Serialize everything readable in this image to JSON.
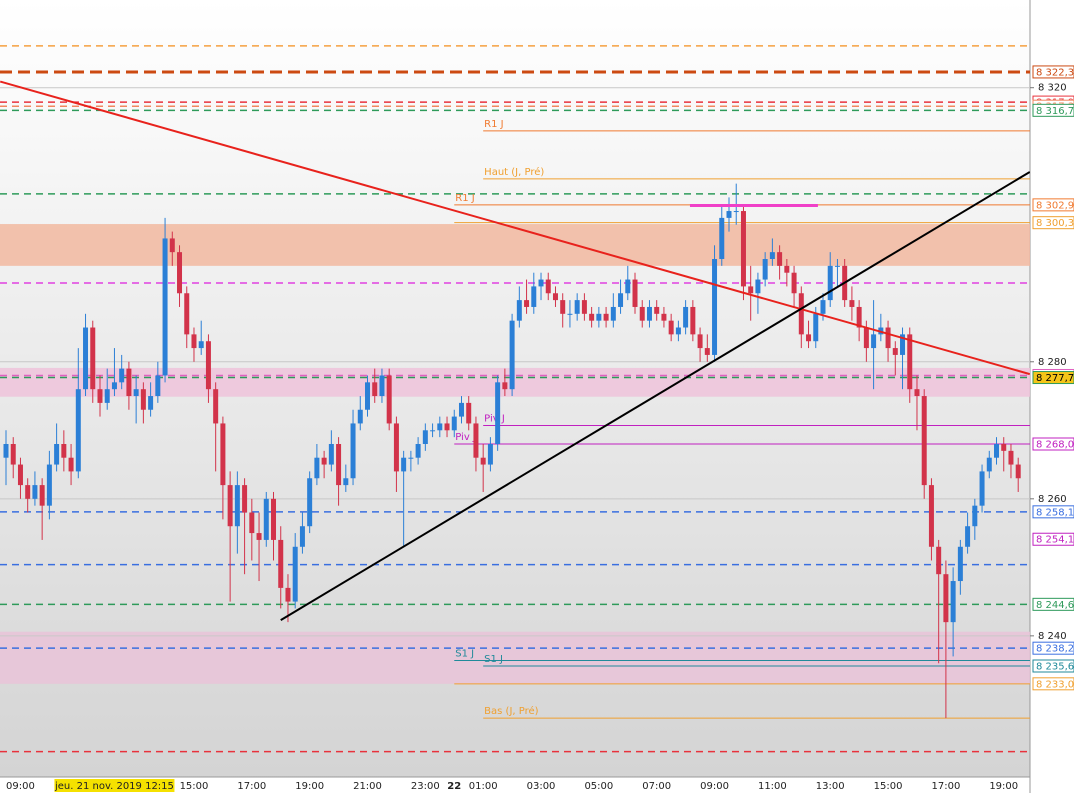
{
  "chart_data": {
    "type": "candlestick",
    "ylim": [
      8219.4,
      8332.8
    ],
    "yticks": [
      {
        "value": 8320,
        "label": "8 320"
      },
      {
        "value": 8280,
        "label": "8 280"
      },
      {
        "value": 8260,
        "label": "8 260"
      },
      {
        "value": 8240,
        "label": "8 240"
      }
    ],
    "grid": true,
    "up_color": "#2b7fd6",
    "down_color": "#d2334a",
    "highlight_category": 15,
    "bold_category": 62,
    "categories": [
      null,
      null,
      "09:00",
      null,
      null,
      null,
      null,
      null,
      null,
      null,
      null,
      null,
      null,
      null,
      null,
      "jeu. 21 nov. 2019 12:15",
      null,
      null,
      null,
      null,
      null,
      null,
      null,
      null,
      null,
      null,
      "15:00",
      null,
      null,
      null,
      null,
      null,
      null,
      null,
      "17:00",
      null,
      null,
      null,
      null,
      null,
      null,
      null,
      "19:00",
      null,
      null,
      null,
      null,
      null,
      null,
      null,
      "21:00",
      null,
      null,
      null,
      null,
      null,
      null,
      null,
      "23:00",
      null,
      null,
      null,
      "22",
      null,
      null,
      null,
      "01:00",
      null,
      null,
      null,
      null,
      null,
      null,
      null,
      "03:00",
      null,
      null,
      null,
      null,
      null,
      null,
      null,
      "05:00",
      null,
      null,
      null,
      null,
      null,
      null,
      null,
      "07:00",
      null,
      null,
      null,
      null,
      null,
      null,
      null,
      "09:00",
      null,
      null,
      null,
      null,
      null,
      null,
      null,
      "11:00",
      null,
      null,
      null,
      null,
      null,
      null,
      null,
      "13:00",
      null,
      null,
      null,
      null,
      null,
      null,
      null,
      "15:00",
      null,
      null,
      null,
      null,
      null,
      null,
      null,
      "17:00",
      null,
      null,
      null,
      null,
      null,
      null,
      null,
      "19:00",
      null,
      null
    ],
    "ohlc": [
      [
        8266,
        8270,
        8262,
        8268
      ],
      [
        8268,
        8269,
        8263,
        8265
      ],
      [
        8265,
        8266,
        8260,
        8262
      ],
      [
        8262,
        8263,
        8258,
        8260
      ],
      [
        8260,
        8264,
        8259,
        8262
      ],
      [
        8262,
        8263,
        8254,
        8259
      ],
      [
        8259,
        8267,
        8257,
        8265
      ],
      [
        8265,
        8271,
        8264,
        8268
      ],
      [
        8268,
        8270,
        8264,
        8266
      ],
      [
        8266,
        8268,
        8262,
        8264
      ],
      [
        8264,
        8282,
        8263,
        8276
      ],
      [
        8276,
        8287,
        8275,
        8285
      ],
      [
        8285,
        8286,
        8274,
        8276
      ],
      [
        8276,
        8278,
        8272,
        8274
      ],
      [
        8274,
        8279,
        8273,
        8276
      ],
      [
        8276,
        8282,
        8275,
        8277
      ],
      [
        8277,
        8281,
        8276,
        8279
      ],
      [
        8279,
        8280,
        8273,
        8275
      ],
      [
        8275,
        8278,
        8271,
        8276
      ],
      [
        8276,
        8277,
        8271,
        8273
      ],
      [
        8273,
        8277,
        8272,
        8275
      ],
      [
        8275,
        8280,
        8274,
        8278
      ],
      [
        8278,
        8301,
        8277,
        8298
      ],
      [
        8298,
        8299,
        8294,
        8296
      ],
      [
        8296,
        8297,
        8288,
        8290
      ],
      [
        8290,
        8291,
        8282,
        8284
      ],
      [
        8284,
        8285,
        8280,
        8282
      ],
      [
        8282,
        8286,
        8281,
        8283
      ],
      [
        8283,
        8284,
        8274,
        8276
      ],
      [
        8276,
        8277,
        8264,
        8271
      ],
      [
        8271,
        8272,
        8257,
        8262
      ],
      [
        8262,
        8264,
        8245,
        8256
      ],
      [
        8256,
        8264,
        8252,
        8262
      ],
      [
        8262,
        8263,
        8249,
        8258
      ],
      [
        8258,
        8260,
        8251,
        8255
      ],
      [
        8255,
        8258,
        8248,
        8254
      ],
      [
        8254,
        8261,
        8253,
        8260
      ],
      [
        8260,
        8261,
        8251,
        8254
      ],
      [
        8254,
        8256,
        8244,
        8247
      ],
      [
        8247,
        8249,
        8242,
        8245
      ],
      [
        8245,
        8255,
        8244,
        8253
      ],
      [
        8253,
        8258,
        8252,
        8256
      ],
      [
        8256,
        8264,
        8255,
        8263
      ],
      [
        8263,
        8268,
        8262,
        8266
      ],
      [
        8266,
        8267,
        8263,
        8265
      ],
      [
        8265,
        8270,
        8264,
        8268
      ],
      [
        8268,
        8269,
        8259,
        8262
      ],
      [
        8262,
        8265,
        8261,
        8263
      ],
      [
        8263,
        8273,
        8262,
        8271
      ],
      [
        8271,
        8275,
        8270,
        8273
      ],
      [
        8273,
        8278,
        8272,
        8277
      ],
      [
        8277,
        8279,
        8274,
        8275
      ],
      [
        8275,
        8279,
        8274,
        8278
      ],
      [
        8278,
        8279,
        8270,
        8271
      ],
      [
        8271,
        8272,
        8261,
        8264
      ],
      [
        8264,
        8267,
        8253,
        8266
      ],
      [
        8266,
        8267,
        8264,
        8266
      ],
      [
        8266,
        8269,
        8265,
        8268
      ],
      [
        8268,
        8271,
        8267,
        8270
      ],
      [
        8270,
        8271,
        8269,
        8270
      ],
      [
        8270,
        8272,
        8269,
        8271
      ],
      [
        8271,
        8272,
        8269,
        8270
      ],
      [
        8270,
        8273,
        8269,
        8272
      ],
      [
        8272,
        8275,
        8271,
        8274
      ],
      [
        8274,
        8275,
        8270,
        8271
      ],
      [
        8271,
        8272,
        8264,
        8266
      ],
      [
        8266,
        8268,
        8261,
        8265
      ],
      [
        8265,
        8269,
        8264,
        8268
      ],
      [
        8268,
        8278,
        8267,
        8277
      ],
      [
        8277,
        8279,
        8275,
        8276
      ],
      [
        8276,
        8287,
        8275,
        8286
      ],
      [
        8286,
        8291,
        8285,
        8289
      ],
      [
        8289,
        8292,
        8287,
        8288
      ],
      [
        8288,
        8293,
        8287,
        8291
      ],
      [
        8291,
        8293,
        8289,
        8292
      ],
      [
        8292,
        8293,
        8289,
        8290
      ],
      [
        8290,
        8291,
        8288,
        8289
      ],
      [
        8289,
        8290,
        8285,
        8287
      ],
      [
        8287,
        8289,
        8285,
        8287
      ],
      [
        8287,
        8290,
        8286,
        8289
      ],
      [
        8289,
        8290,
        8286,
        8287
      ],
      [
        8287,
        8288,
        8285,
        8286
      ],
      [
        8286,
        8288,
        8285,
        8287
      ],
      [
        8287,
        8288,
        8285,
        8286
      ],
      [
        8286,
        8290,
        8285,
        8288
      ],
      [
        8288,
        8292,
        8287,
        8290
      ],
      [
        8290,
        8294,
        8289,
        8292
      ],
      [
        8292,
        8293,
        8287,
        8288
      ],
      [
        8288,
        8289,
        8285,
        8286
      ],
      [
        8286,
        8289,
        8285,
        8288
      ],
      [
        8288,
        8289,
        8286,
        8287
      ],
      [
        8287,
        8288,
        8285,
        8286
      ],
      [
        8286,
        8287,
        8283,
        8284
      ],
      [
        8284,
        8286,
        8283,
        8285
      ],
      [
        8285,
        8289,
        8284,
        8288
      ],
      [
        8288,
        8289,
        8283,
        8284
      ],
      [
        8284,
        8285,
        8280,
        8282
      ],
      [
        8282,
        8284,
        8280,
        8281
      ],
      [
        8281,
        8297,
        8280,
        8295
      ],
      [
        8295,
        8303,
        8294,
        8301
      ],
      [
        8301,
        8304,
        8299,
        8302
      ],
      [
        8302,
        8306,
        8300,
        8302
      ],
      [
        8302,
        8303,
        8289,
        8291
      ],
      [
        8291,
        8294,
        8286,
        8290
      ],
      [
        8290,
        8293,
        8287,
        8292
      ],
      [
        8292,
        8296,
        8291,
        8295
      ],
      [
        8295,
        8298,
        8294,
        8296
      ],
      [
        8296,
        8297,
        8292,
        8294
      ],
      [
        8294,
        8295,
        8291,
        8293
      ],
      [
        8293,
        8294,
        8288,
        8290
      ],
      [
        8290,
        8291,
        8282,
        8284
      ],
      [
        8284,
        8286,
        8282,
        8283
      ],
      [
        8283,
        8288,
        8282,
        8287
      ],
      [
        8287,
        8290,
        8286,
        8289
      ],
      [
        8289,
        8296,
        8288,
        8294
      ],
      [
        8294,
        8295,
        8291,
        8294
      ],
      [
        8294,
        8295,
        8288,
        8289
      ],
      [
        8289,
        8291,
        8286,
        8288
      ],
      [
        8288,
        8289,
        8283,
        8285
      ],
      [
        8285,
        8286,
        8280,
        8282
      ],
      [
        8282,
        8289,
        8276,
        8284
      ],
      [
        8284,
        8287,
        8283,
        8285
      ],
      [
        8285,
        8286,
        8280,
        8282
      ],
      [
        8282,
        8283,
        8278,
        8281
      ],
      [
        8281,
        8285,
        8276,
        8284
      ],
      [
        8284,
        8285,
        8274,
        8276
      ],
      [
        8276,
        8278,
        8270,
        8275
      ],
      [
        8275,
        8276,
        8260,
        8262
      ],
      [
        8262,
        8263,
        8251,
        8253
      ],
      [
        8253,
        8254,
        8236,
        8249
      ],
      [
        8249,
        8251,
        8228,
        8242
      ],
      [
        8242,
        8250,
        8237,
        8248
      ],
      [
        8248,
        8254,
        8246,
        8253
      ],
      [
        8253,
        8258,
        8252,
        8256
      ],
      [
        8256,
        8260,
        8254,
        8259
      ],
      [
        8259,
        8265,
        8258,
        8264
      ],
      [
        8264,
        8267,
        8263,
        8266
      ],
      [
        8266,
        8269,
        8265,
        8268
      ],
      [
        8268,
        8269,
        8264,
        8267
      ],
      [
        8267,
        8268,
        8263,
        8265
      ],
      [
        8265,
        8266,
        8261,
        8263
      ]
    ],
    "zones": [
      {
        "from": 8300.1,
        "to": 8294.0,
        "color": "#f2b9a0"
      },
      {
        "from": 8279.1,
        "to": 8274.9,
        "color": "#efc3da"
      },
      {
        "from": 8240.6,
        "to": 8233.0,
        "color": "#e9c3d8"
      }
    ],
    "levels": [
      {
        "value": 8326.1,
        "color": "#f5a040",
        "style": "dash",
        "width": 1.5
      },
      {
        "value": 8322.3,
        "label": "8 322,3",
        "color": "#cc4a12",
        "style": "dash",
        "width": 3
      },
      {
        "value": 8317.9,
        "label": "8 317,9",
        "color": "#e8323c",
        "style": "dash",
        "width": 1.5
      },
      {
        "value": 8317.3,
        "label": "8 317,3",
        "color": "#f08860",
        "style": "dash",
        "width": 1.5
      },
      {
        "value": 8316.7,
        "label": "8 316,7",
        "color": "#2e9a5a",
        "style": "dash",
        "width": 1.5
      },
      {
        "value": 8304.5,
        "color": "#2e9a5a",
        "style": "dash",
        "width": 1.5
      },
      {
        "value": 8291.5,
        "color": "#e040e0",
        "style": "dash",
        "width": 1.5
      },
      {
        "value": 8278.0,
        "label": "8 278,0",
        "color": "#e060c0",
        "style": "dash",
        "width": 1.5
      },
      {
        "value": 8277.7,
        "label": "8 277,7",
        "color": "#2e9a5a",
        "style": "dash",
        "width": 1.5,
        "label_bg": "#f5c518",
        "label_color": "#000000"
      },
      {
        "value": 8258.1,
        "label": "8 258,1",
        "color": "#3a6fe0",
        "style": "dash",
        "width": 1.5
      },
      {
        "value": 8250.4,
        "color": "#3a6fe0",
        "style": "dash",
        "width": 1.5
      },
      {
        "value": 8244.6,
        "label": "8 244,6",
        "color": "#2e9a5a",
        "style": "dash",
        "width": 1.5
      },
      {
        "value": 8238.2,
        "label": "8 238,2",
        "color": "#3a6fe0",
        "style": "dash",
        "width": 1.5
      },
      {
        "value": 8223.1,
        "color": "#e8323c",
        "style": "dash",
        "width": 1.5
      },
      {
        "value": 8313.7,
        "text": "R1 J",
        "color": "#f07a30",
        "style": "solid",
        "width": 1,
        "from": 66
      },
      {
        "value": 8306.7,
        "text": "Haut (J, Pré)",
        "color": "#f0a030",
        "style": "solid",
        "width": 1,
        "from": 66
      },
      {
        "value": 8302.9,
        "text": "R1 J",
        "label": "8 302,9",
        "color": "#f07a30",
        "style": "solid",
        "width": 1,
        "from": 62
      },
      {
        "value": 8300.3,
        "label": "8 300,3",
        "color": "#f0a030",
        "style": "solid",
        "width": 1,
        "from": 62
      },
      {
        "value": 8270.7,
        "text": "Piv J",
        "color": "#c020c0",
        "style": "solid",
        "width": 1,
        "from": 66
      },
      {
        "value": 8268.0,
        "text": "Piv J",
        "label": "8 268,0",
        "color": "#c020c0",
        "style": "solid",
        "width": 1,
        "from": 62
      },
      {
        "value": 8236.4,
        "text": "S1 J",
        "color": "#208a9a",
        "style": "solid",
        "width": 1,
        "from": 62
      },
      {
        "value": 8235.6,
        "text": "S1 J",
        "label": "8 235,6",
        "color": "#208a9a",
        "style": "solid",
        "width": 1,
        "from": 66
      },
      {
        "value": 8233.0,
        "label": "8 233,0",
        "color": "#f0a030",
        "style": "solid",
        "width": 1,
        "from": 62
      },
      {
        "value": 8228.0,
        "text": "Bas (J, Pré)",
        "color": "#f0a030",
        "style": "solid",
        "width": 1,
        "from": 66
      },
      {
        "value": 8254.1,
        "label": "8 254,1",
        "color": "#c020c0",
        "style": "none",
        "label_bg": "#ffffff"
      }
    ],
    "trendlines": [
      {
        "x": [
          -0.8,
          141.6
        ],
        "y": [
          8320.9,
          8278.2
        ],
        "color": "#e8221c",
        "width": 2
      },
      {
        "x": [
          38,
          141.6
        ],
        "y": [
          8242.3,
          8307.7
        ],
        "color": "#000000",
        "width": 2
      },
      {
        "x": [
          94.6,
          112.3
        ],
        "y": [
          8302.8,
          8302.8
        ],
        "color": "#f040c8",
        "width": 3
      }
    ]
  }
}
